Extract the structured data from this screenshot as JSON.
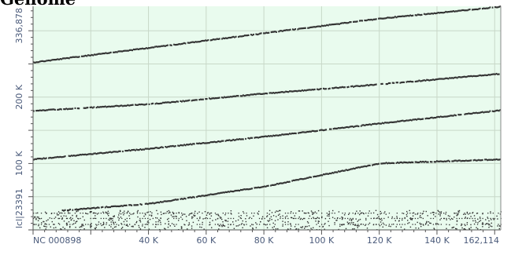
{
  "chart_data": {
    "type": "scatter",
    "title": "Genome",
    "xlabel": "NC_000898",
    "ylabel": "lcl|23391",
    "x_axis_label": "NC 000898",
    "y_axis_label": "lcl|23391",
    "xlim": [
      0,
      162114
    ],
    "ylim": [
      0,
      336878
    ],
    "x_ticks": [
      {
        "value": 40000,
        "label": "40 K"
      },
      {
        "value": 60000,
        "label": "60 K"
      },
      {
        "value": 80000,
        "label": "80 K"
      },
      {
        "value": 100000,
        "label": "100 K"
      },
      {
        "value": 120000,
        "label": "120 K"
      },
      {
        "value": 140000,
        "label": "140 K"
      },
      {
        "value": 162114,
        "label": "162,114"
      }
    ],
    "y_ticks": [
      {
        "value": 100000,
        "label": "100 K"
      },
      {
        "value": 200000,
        "label": "200 K"
      },
      {
        "value": 336878,
        "label": "336,878"
      }
    ],
    "grid": true,
    "background_color": "#e9fbee",
    "grid_color": "#c8d8c8",
    "point_color": "#333333",
    "axis_text_color": "#4a5a7a",
    "series": [
      {
        "x": [
          0,
          60000,
          120000,
          162114
        ],
        "y": [
          253000,
          286000,
          319000,
          337000
        ]
      },
      {
        "x": [
          0,
          40000,
          80000,
          120000,
          162114
        ],
        "y": [
          180000,
          190000,
          206000,
          220000,
          236000
        ]
      },
      {
        "x": [
          0,
          40000,
          80000,
          120000,
          162114
        ],
        "y": [
          107000,
          123000,
          141000,
          161000,
          181000
        ]
      },
      {
        "x": [
          10000,
          40000,
          80000,
          120000,
          162114
        ],
        "y": [
          30000,
          40000,
          66000,
          101000,
          107000
        ]
      }
    ],
    "noise_band": {
      "x_range": [
        0,
        162114
      ],
      "y_range": [
        1000,
        30000
      ]
    }
  }
}
